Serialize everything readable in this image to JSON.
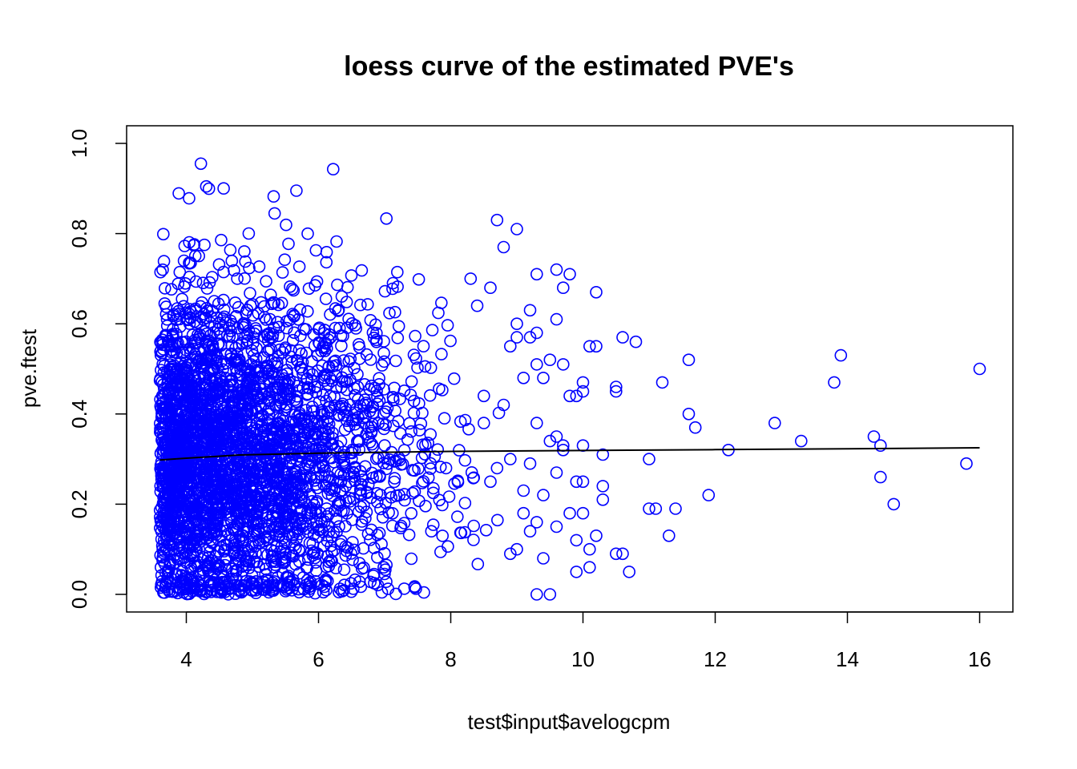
{
  "chart_data": {
    "type": "scatter",
    "title": "loess curve of the estimated PVE's",
    "xlabel": "test$input$avelogcpm",
    "ylabel": "pve.ftest",
    "xlim": [
      3.6,
      16.1
    ],
    "ylim": [
      0,
      1
    ],
    "x_ticks": [
      4,
      6,
      8,
      10,
      12,
      14,
      16
    ],
    "y_ticks": [
      0.0,
      0.2,
      0.4,
      0.6,
      0.8,
      1.0
    ],
    "x_tick_labels": [
      "4",
      "6",
      "8",
      "10",
      "12",
      "14",
      "16"
    ],
    "y_tick_labels": [
      "0.0",
      "0.2",
      "0.4",
      "0.6",
      "0.8",
      "1.0"
    ],
    "grid": false,
    "point_color": "#0000ff",
    "line_color": "#000000",
    "series": [
      {
        "kind": "points",
        "x": [
          9.0,
          9.2,
          9.3,
          9.3,
          9.5,
          9.6,
          9.7,
          9.8,
          9.9,
          10.0,
          10.1,
          10.2,
          10.3,
          10.3,
          10.5,
          10.5,
          10.6,
          10.8,
          11.0,
          11.0,
          11.1,
          11.2,
          11.3,
          11.4,
          11.6,
          11.6,
          11.7,
          11.9,
          12.2,
          12.9,
          13.3,
          13.8,
          13.9,
          14.4,
          14.5,
          14.5,
          14.7,
          15.8,
          16.0,
          10.6,
          10.2,
          9.9,
          9.5,
          9.3,
          9.9,
          10.1,
          9.4,
          9.2,
          9.0,
          8.9,
          9.3,
          9.8,
          10.0,
          10.0,
          9.6,
          9.7,
          9.0,
          8.8,
          8.7,
          8.6,
          9.1,
          8.8,
          8.5,
          9.5,
          9.6,
          9.7,
          10.3,
          9.8,
          9.6,
          9.3,
          9.1,
          9.4,
          9.9,
          10.1,
          10.0,
          9.7,
          9.6,
          9.1,
          8.7,
          8.6,
          8.4,
          8.3,
          9.2,
          9.0,
          8.9,
          9.4,
          10.2,
          10.5,
          10.7,
          10.0,
          8.5,
          8.9,
          9.2,
          9.3
        ],
        "y": [
          0.57,
          0.57,
          0.58,
          0.51,
          0.52,
          0.61,
          0.51,
          0.44,
          0.44,
          0.47,
          0.55,
          0.55,
          0.31,
          0.24,
          0.45,
          0.46,
          0.57,
          0.56,
          0.3,
          0.19,
          0.19,
          0.47,
          0.13,
          0.19,
          0.52,
          0.4,
          0.37,
          0.22,
          0.32,
          0.38,
          0.34,
          0.47,
          0.53,
          0.35,
          0.33,
          0.26,
          0.2,
          0.29,
          0.5,
          0.09,
          0.13,
          0.05,
          0.0,
          0.0,
          0.25,
          0.06,
          0.08,
          0.14,
          0.1,
          0.09,
          0.71,
          0.71,
          0.45,
          0.33,
          0.72,
          0.68,
          0.81,
          0.77,
          0.83,
          0.68,
          0.48,
          0.42,
          0.38,
          0.34,
          0.35,
          0.33,
          0.21,
          0.18,
          0.15,
          0.16,
          0.18,
          0.22,
          0.12,
          0.1,
          0.25,
          0.32,
          0.27,
          0.23,
          0.28,
          0.25,
          0.64,
          0.7,
          0.63,
          0.6,
          0.55,
          0.48,
          0.67,
          0.09,
          0.05,
          0.18,
          0.44,
          0.3,
          0.29,
          0.38
        ]
      },
      {
        "kind": "loess-line",
        "x": [
          3.6,
          4.0,
          4.8,
          6.0,
          8.0,
          10.0,
          12.0,
          14.0,
          16.0
        ],
        "y": [
          0.298,
          0.302,
          0.309,
          0.313,
          0.317,
          0.319,
          0.321,
          0.323,
          0.325
        ]
      }
    ]
  }
}
